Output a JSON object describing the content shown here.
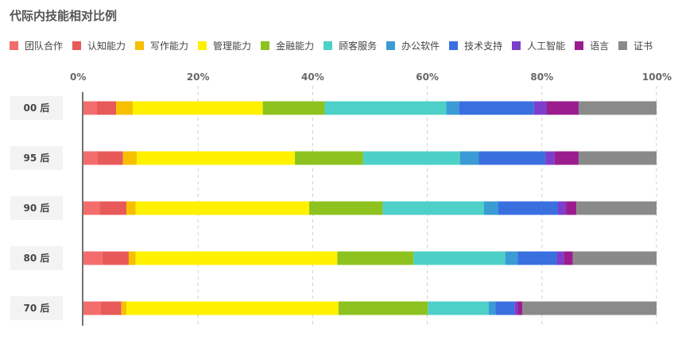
{
  "chart_data": {
    "type": "bar",
    "orientation": "horizontal",
    "stacked": true,
    "normalized": true,
    "title": "代际内技能相对比例",
    "categories": [
      "00 后",
      "95 后",
      "90 后",
      "80 后",
      "70 后"
    ],
    "xlim": [
      0,
      100
    ],
    "xticks": [
      "0%",
      "20%",
      "40%",
      "60%",
      "80%",
      "100%"
    ],
    "grid": true,
    "legend": "top",
    "series": [
      {
        "name": "团队合作",
        "color": "#F46D6D",
        "values": [
          2.3,
          2.4,
          2.8,
          3.3,
          3.0
        ]
      },
      {
        "name": "认知能力",
        "color": "#E85A5A",
        "values": [
          3.4,
          4.5,
          4.7,
          4.6,
          3.6
        ]
      },
      {
        "name": "写作能力",
        "color": "#F6C000",
        "values": [
          2.9,
          2.4,
          1.6,
          1.2,
          0.9
        ]
      },
      {
        "name": "管理能力",
        "color": "#FFF100",
        "values": [
          22.7,
          27.6,
          30.3,
          35.2,
          37.0
        ]
      },
      {
        "name": "金融能力",
        "color": "#8DC21F",
        "values": [
          10.8,
          11.9,
          12.8,
          13.3,
          15.6
        ]
      },
      {
        "name": "顾客服务",
        "color": "#4DD0C8",
        "values": [
          21.2,
          16.9,
          17.7,
          16.0,
          10.6
        ]
      },
      {
        "name": "办公软件",
        "color": "#3A9BD5",
        "values": [
          2.2,
          3.3,
          2.5,
          2.2,
          1.2
        ]
      },
      {
        "name": "技术支持",
        "color": "#3A6FE0",
        "values": [
          13.1,
          11.6,
          10.4,
          6.8,
          3.3
        ]
      },
      {
        "name": "人工智能",
        "color": "#7B3FCB",
        "values": [
          2.2,
          1.6,
          1.4,
          1.2,
          0.6
        ]
      },
      {
        "name": "语言",
        "color": "#9B1C8E",
        "values": [
          5.6,
          4.2,
          1.8,
          1.6,
          0.8
        ]
      },
      {
        "name": "证书",
        "color": "#8A8A8A",
        "values": [
          13.6,
          13.6,
          14.0,
          14.6,
          23.4
        ]
      }
    ]
  }
}
